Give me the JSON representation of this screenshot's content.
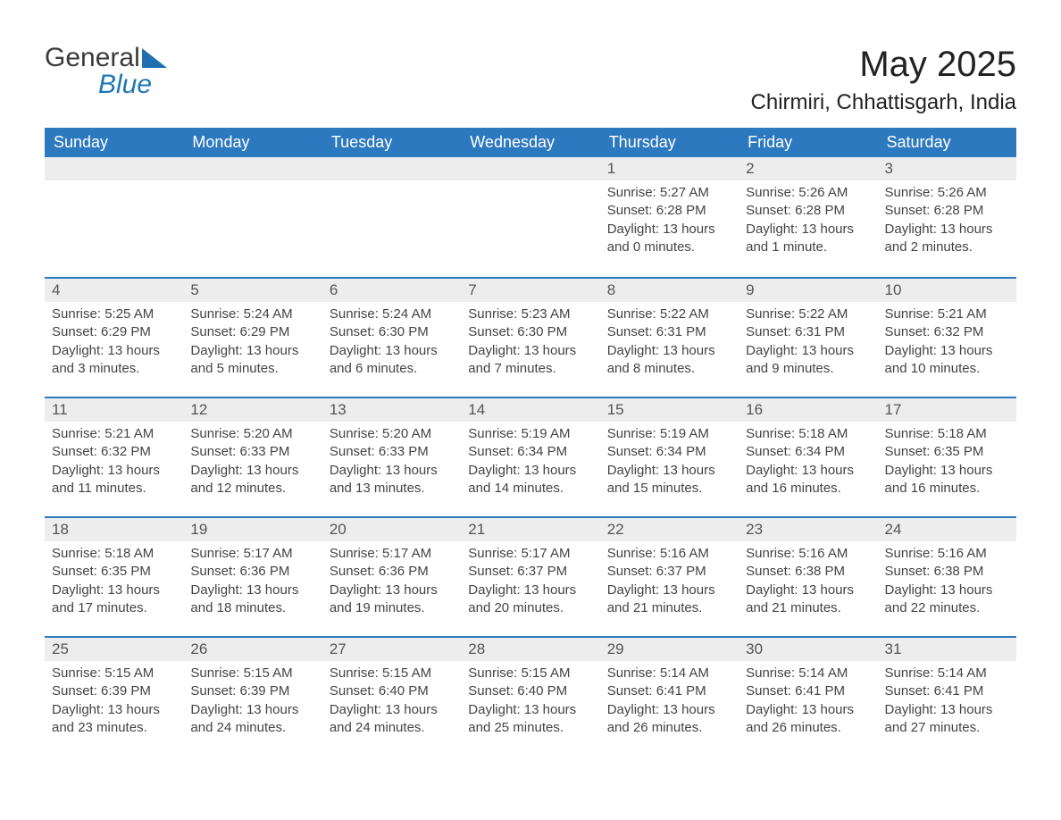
{
  "logo": {
    "word1": "General",
    "word2": "Blue"
  },
  "title": "May 2025",
  "location": "Chirmiri, Chhattisgarh, India",
  "colors": {
    "header_bg": "#2d79bf",
    "header_text": "#ffffff",
    "daynum_bg": "#ededed",
    "row_divider": "#2d79bf",
    "body_text": "#444444",
    "logo_gray": "#3a3a3a",
    "logo_blue": "#1f77b4",
    "page_bg": "#ffffff"
  },
  "typography": {
    "title_fontsize": 40,
    "location_fontsize": 24,
    "header_fontsize": 18,
    "daynum_fontsize": 17,
    "body_fontsize": 15
  },
  "day_headers": [
    "Sunday",
    "Monday",
    "Tuesday",
    "Wednesday",
    "Thursday",
    "Friday",
    "Saturday"
  ],
  "weeks": [
    [
      null,
      null,
      null,
      null,
      {
        "n": "1",
        "sunrise": "Sunrise: 5:27 AM",
        "sunset": "Sunset: 6:28 PM",
        "daylight": "Daylight: 13 hours and 0 minutes."
      },
      {
        "n": "2",
        "sunrise": "Sunrise: 5:26 AM",
        "sunset": "Sunset: 6:28 PM",
        "daylight": "Daylight: 13 hours and 1 minute."
      },
      {
        "n": "3",
        "sunrise": "Sunrise: 5:26 AM",
        "sunset": "Sunset: 6:28 PM",
        "daylight": "Daylight: 13 hours and 2 minutes."
      }
    ],
    [
      {
        "n": "4",
        "sunrise": "Sunrise: 5:25 AM",
        "sunset": "Sunset: 6:29 PM",
        "daylight": "Daylight: 13 hours and 3 minutes."
      },
      {
        "n": "5",
        "sunrise": "Sunrise: 5:24 AM",
        "sunset": "Sunset: 6:29 PM",
        "daylight": "Daylight: 13 hours and 5 minutes."
      },
      {
        "n": "6",
        "sunrise": "Sunrise: 5:24 AM",
        "sunset": "Sunset: 6:30 PM",
        "daylight": "Daylight: 13 hours and 6 minutes."
      },
      {
        "n": "7",
        "sunrise": "Sunrise: 5:23 AM",
        "sunset": "Sunset: 6:30 PM",
        "daylight": "Daylight: 13 hours and 7 minutes."
      },
      {
        "n": "8",
        "sunrise": "Sunrise: 5:22 AM",
        "sunset": "Sunset: 6:31 PM",
        "daylight": "Daylight: 13 hours and 8 minutes."
      },
      {
        "n": "9",
        "sunrise": "Sunrise: 5:22 AM",
        "sunset": "Sunset: 6:31 PM",
        "daylight": "Daylight: 13 hours and 9 minutes."
      },
      {
        "n": "10",
        "sunrise": "Sunrise: 5:21 AM",
        "sunset": "Sunset: 6:32 PM",
        "daylight": "Daylight: 13 hours and 10 minutes."
      }
    ],
    [
      {
        "n": "11",
        "sunrise": "Sunrise: 5:21 AM",
        "sunset": "Sunset: 6:32 PM",
        "daylight": "Daylight: 13 hours and 11 minutes."
      },
      {
        "n": "12",
        "sunrise": "Sunrise: 5:20 AM",
        "sunset": "Sunset: 6:33 PM",
        "daylight": "Daylight: 13 hours and 12 minutes."
      },
      {
        "n": "13",
        "sunrise": "Sunrise: 5:20 AM",
        "sunset": "Sunset: 6:33 PM",
        "daylight": "Daylight: 13 hours and 13 minutes."
      },
      {
        "n": "14",
        "sunrise": "Sunrise: 5:19 AM",
        "sunset": "Sunset: 6:34 PM",
        "daylight": "Daylight: 13 hours and 14 minutes."
      },
      {
        "n": "15",
        "sunrise": "Sunrise: 5:19 AM",
        "sunset": "Sunset: 6:34 PM",
        "daylight": "Daylight: 13 hours and 15 minutes."
      },
      {
        "n": "16",
        "sunrise": "Sunrise: 5:18 AM",
        "sunset": "Sunset: 6:34 PM",
        "daylight": "Daylight: 13 hours and 16 minutes."
      },
      {
        "n": "17",
        "sunrise": "Sunrise: 5:18 AM",
        "sunset": "Sunset: 6:35 PM",
        "daylight": "Daylight: 13 hours and 16 minutes."
      }
    ],
    [
      {
        "n": "18",
        "sunrise": "Sunrise: 5:18 AM",
        "sunset": "Sunset: 6:35 PM",
        "daylight": "Daylight: 13 hours and 17 minutes."
      },
      {
        "n": "19",
        "sunrise": "Sunrise: 5:17 AM",
        "sunset": "Sunset: 6:36 PM",
        "daylight": "Daylight: 13 hours and 18 minutes."
      },
      {
        "n": "20",
        "sunrise": "Sunrise: 5:17 AM",
        "sunset": "Sunset: 6:36 PM",
        "daylight": "Daylight: 13 hours and 19 minutes."
      },
      {
        "n": "21",
        "sunrise": "Sunrise: 5:17 AM",
        "sunset": "Sunset: 6:37 PM",
        "daylight": "Daylight: 13 hours and 20 minutes."
      },
      {
        "n": "22",
        "sunrise": "Sunrise: 5:16 AM",
        "sunset": "Sunset: 6:37 PM",
        "daylight": "Daylight: 13 hours and 21 minutes."
      },
      {
        "n": "23",
        "sunrise": "Sunrise: 5:16 AM",
        "sunset": "Sunset: 6:38 PM",
        "daylight": "Daylight: 13 hours and 21 minutes."
      },
      {
        "n": "24",
        "sunrise": "Sunrise: 5:16 AM",
        "sunset": "Sunset: 6:38 PM",
        "daylight": "Daylight: 13 hours and 22 minutes."
      }
    ],
    [
      {
        "n": "25",
        "sunrise": "Sunrise: 5:15 AM",
        "sunset": "Sunset: 6:39 PM",
        "daylight": "Daylight: 13 hours and 23 minutes."
      },
      {
        "n": "26",
        "sunrise": "Sunrise: 5:15 AM",
        "sunset": "Sunset: 6:39 PM",
        "daylight": "Daylight: 13 hours and 24 minutes."
      },
      {
        "n": "27",
        "sunrise": "Sunrise: 5:15 AM",
        "sunset": "Sunset: 6:40 PM",
        "daylight": "Daylight: 13 hours and 24 minutes."
      },
      {
        "n": "28",
        "sunrise": "Sunrise: 5:15 AM",
        "sunset": "Sunset: 6:40 PM",
        "daylight": "Daylight: 13 hours and 25 minutes."
      },
      {
        "n": "29",
        "sunrise": "Sunrise: 5:14 AM",
        "sunset": "Sunset: 6:41 PM",
        "daylight": "Daylight: 13 hours and 26 minutes."
      },
      {
        "n": "30",
        "sunrise": "Sunrise: 5:14 AM",
        "sunset": "Sunset: 6:41 PM",
        "daylight": "Daylight: 13 hours and 26 minutes."
      },
      {
        "n": "31",
        "sunrise": "Sunrise: 5:14 AM",
        "sunset": "Sunset: 6:41 PM",
        "daylight": "Daylight: 13 hours and 27 minutes."
      }
    ]
  ]
}
